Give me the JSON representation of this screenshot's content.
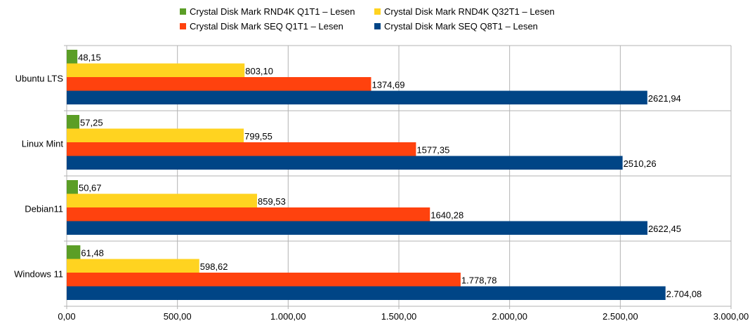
{
  "chart_data": {
    "type": "bar",
    "orientation": "horizontal",
    "categories": [
      "Ubuntu LTS",
      "Linux Mint",
      "Debian11",
      "Windows 11"
    ],
    "series": [
      {
        "name": "Crystal Disk Mark RND4K Q1T1 – Lesen",
        "color": "#5b9e26",
        "values": [
          48.15,
          57.25,
          50.67,
          61.48
        ],
        "labels": [
          "48,15",
          "57,25",
          "50,67",
          "61,48"
        ]
      },
      {
        "name": "Crystal Disk Mark RND4K Q32T1 – Lesen",
        "color": "#ffd320",
        "values": [
          803.1,
          799.55,
          859.53,
          598.62
        ],
        "labels": [
          "803,10",
          "799,55",
          "859,53",
          "598,62"
        ]
      },
      {
        "name": "Crystal Disk Mark SEQ Q1T1 – Lesen",
        "color": "#ff420e",
        "values": [
          1374.69,
          1577.35,
          1640.28,
          1778.78
        ],
        "labels": [
          "1374,69",
          "1577,35",
          "1640,28",
          "1.778,78"
        ]
      },
      {
        "name": "Crystal Disk Mark SEQ Q8T1 – Lesen",
        "color": "#004586",
        "values": [
          2621.94,
          2510.26,
          2622.45,
          2704.08
        ],
        "labels": [
          "2621,94",
          "2510,26",
          "2622,45",
          "2.704,08"
        ]
      }
    ],
    "xlim": [
      0,
      3000
    ],
    "xticks": [
      0,
      500,
      1000,
      1500,
      2000,
      2500,
      3000
    ],
    "xtick_labels": [
      "0,00",
      "500,00",
      "1.000,00",
      "1.500,00",
      "2.000,00",
      "2.500,00",
      "3.000,00"
    ],
    "grid": true,
    "legend_position": "top"
  }
}
